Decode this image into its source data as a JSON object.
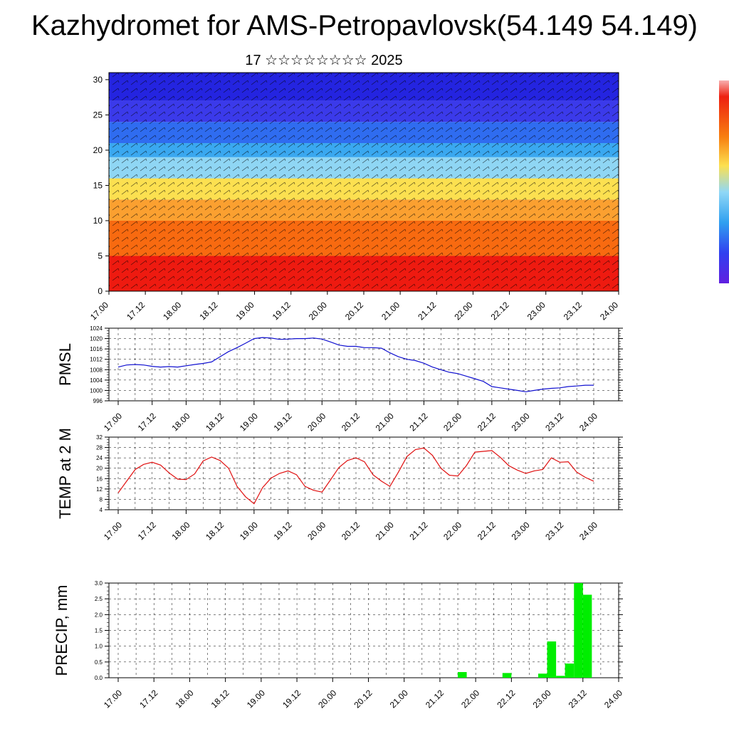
{
  "header": {
    "title": "Kazhydromet for AMS-Petropavlovsk(54.149 54.149)",
    "subtitle": "17 ☆☆☆☆☆☆☆☆ 2025"
  },
  "colors": {
    "pmsl_line": "#1010d0",
    "temp_line": "#e01010",
    "precip_bar": "#00ee00",
    "cross_section_high": "#2020e0",
    "cross_section_mid": "#f0e060",
    "cross_section_low": "#ee1010"
  },
  "chart_data": [
    {
      "type": "heatmap",
      "name": "cross-section",
      "x_ticks": [
        "17.00",
        "17.12",
        "18.00",
        "18.12",
        "19.00",
        "19.12",
        "20.00",
        "20.12",
        "21.00",
        "21.12",
        "22.00",
        "22.12",
        "23.00",
        "23.12",
        "24.00"
      ],
      "y_ticks": [
        "0",
        "5",
        "10",
        "15",
        "20",
        "25",
        "30"
      ],
      "ylim": [
        0,
        30
      ],
      "bands": [
        {
          "from": 0,
          "to": 5,
          "color": "#ee1a10"
        },
        {
          "from": 5,
          "to": 10,
          "color": "#f86a10"
        },
        {
          "from": 10,
          "to": 13,
          "color": "#fba030"
        },
        {
          "from": 13,
          "to": 16,
          "color": "#fce050"
        },
        {
          "from": 16,
          "to": 19,
          "color": "#8fd6f4"
        },
        {
          "from": 19,
          "to": 21,
          "color": "#3aa8f0"
        },
        {
          "from": 21,
          "to": 24,
          "color": "#2f6cf0"
        },
        {
          "from": 24,
          "to": 27,
          "color": "#3b3aea"
        },
        {
          "from": 27,
          "to": 31,
          "color": "#2424e0"
        }
      ]
    },
    {
      "type": "line",
      "name": "PMSL",
      "ylabel": "PMSL",
      "ylim": [
        996,
        1024
      ],
      "y_ticks": [
        "996",
        "1000",
        "1004",
        "1008",
        "1012",
        "1016",
        "1020",
        "1024"
      ],
      "x_ticks": [
        "17.00",
        "17.12",
        "18.00",
        "18.12",
        "19.00",
        "19.12",
        "20.00",
        "20.12",
        "21.00",
        "21.12",
        "22.00",
        "22.12",
        "23.00",
        "23.12",
        "24.00"
      ],
      "x": [
        0,
        3,
        6,
        9,
        12,
        15,
        18,
        21,
        24,
        27,
        30,
        33,
        36,
        39,
        42,
        45,
        48,
        51,
        54,
        57,
        60,
        63,
        66,
        69,
        72,
        75,
        78,
        81,
        84,
        87,
        90,
        93,
        96,
        99,
        102,
        105,
        108,
        111,
        114,
        117,
        120,
        123,
        126,
        129,
        132,
        135,
        138,
        141,
        144,
        147,
        150,
        153,
        156,
        159,
        162,
        165,
        168
      ],
      "values": [
        1009,
        1009.8,
        1010,
        1009.8,
        1009.3,
        1009,
        1009.2,
        1009,
        1009.5,
        1010,
        1010.4,
        1011,
        1013,
        1015,
        1016.5,
        1018.2,
        1020,
        1020.4,
        1020.2,
        1019.7,
        1019.8,
        1020,
        1020,
        1020.2,
        1019.8,
        1018.7,
        1017.5,
        1017,
        1017,
        1016.5,
        1016.5,
        1016.3,
        1014.5,
        1013,
        1012,
        1011.5,
        1010.5,
        1009,
        1008,
        1007,
        1006.5,
        1005.5,
        1004.5,
        1003.5,
        1001.5,
        1001,
        1000.5,
        1000,
        999.5,
        1000,
        1000.5,
        1000.8,
        1001,
        1001.5,
        1001.7,
        1002,
        1002
      ]
    },
    {
      "type": "line",
      "name": "TEMP at 2 M",
      "ylabel": "TEMP at 2 M",
      "ylim": [
        4,
        32
      ],
      "y_ticks": [
        "4",
        "8",
        "12",
        "16",
        "20",
        "24",
        "28",
        "32"
      ],
      "x_ticks": [
        "17.00",
        "17.12",
        "18.00",
        "18.12",
        "19.00",
        "19.12",
        "20.00",
        "20.12",
        "21.00",
        "21.12",
        "22.00",
        "22.12",
        "23.00",
        "23.12",
        "24.00"
      ],
      "x": [
        0,
        3,
        6,
        9,
        12,
        15,
        18,
        21,
        24,
        27,
        30,
        33,
        36,
        39,
        42,
        45,
        48,
        51,
        54,
        57,
        60,
        63,
        66,
        69,
        72,
        75,
        78,
        81,
        84,
        87,
        90,
        93,
        96,
        99,
        102,
        105,
        108,
        111,
        114,
        117,
        120,
        123,
        126,
        129,
        132,
        135,
        138,
        141,
        144,
        147,
        150,
        153,
        156,
        159,
        162,
        165,
        168
      ],
      "values": [
        10.5,
        15,
        19.5,
        21.5,
        22.3,
        21.2,
        18.2,
        15.8,
        15.6,
        17.8,
        22.8,
        24.3,
        23,
        20,
        13,
        9,
        6.3,
        12.5,
        16.2,
        18,
        19,
        17.5,
        13,
        11.5,
        10.8,
        15.5,
        20.3,
        23,
        24,
        22.5,
        17.5,
        15,
        13,
        18.5,
        24.5,
        27.2,
        27.8,
        25,
        20,
        17.3,
        17,
        21,
        26.2,
        26.5,
        26.8,
        24.2,
        21,
        19.3,
        18,
        19,
        19.5,
        24,
        22.3,
        22.5,
        18.5,
        16.5,
        15
      ]
    },
    {
      "type": "bar",
      "name": "PRECIP, mm",
      "ylabel": "PRECIP, mm",
      "ylim": [
        0,
        3
      ],
      "y_ticks": [
        "0.0",
        "0.5",
        "1.0",
        "1.5",
        "2.0",
        "2.5",
        "3.0"
      ],
      "x_ticks": [
        "17.00",
        "17.12",
        "18.00",
        "18.12",
        "19.00",
        "19.12",
        "20.00",
        "20.12",
        "21.00",
        "21.12",
        "22.00",
        "22.12",
        "23.00",
        "23.12",
        "24.00"
      ],
      "bars": [
        {
          "x_start": 114,
          "x_end": 117,
          "value": 0.18
        },
        {
          "x_start": 129,
          "x_end": 132,
          "value": 0.15
        },
        {
          "x_start": 141,
          "x_end": 144,
          "value": 0.13
        },
        {
          "x_start": 144,
          "x_end": 147,
          "value": 1.15
        },
        {
          "x_start": 147,
          "x_end": 150,
          "value": 0.06
        },
        {
          "x_start": 150,
          "x_end": 153,
          "value": 0.45
        },
        {
          "x_start": 153,
          "x_end": 156,
          "value": 3.0
        },
        {
          "x_start": 156,
          "x_end": 159,
          "value": 2.63
        }
      ]
    }
  ]
}
